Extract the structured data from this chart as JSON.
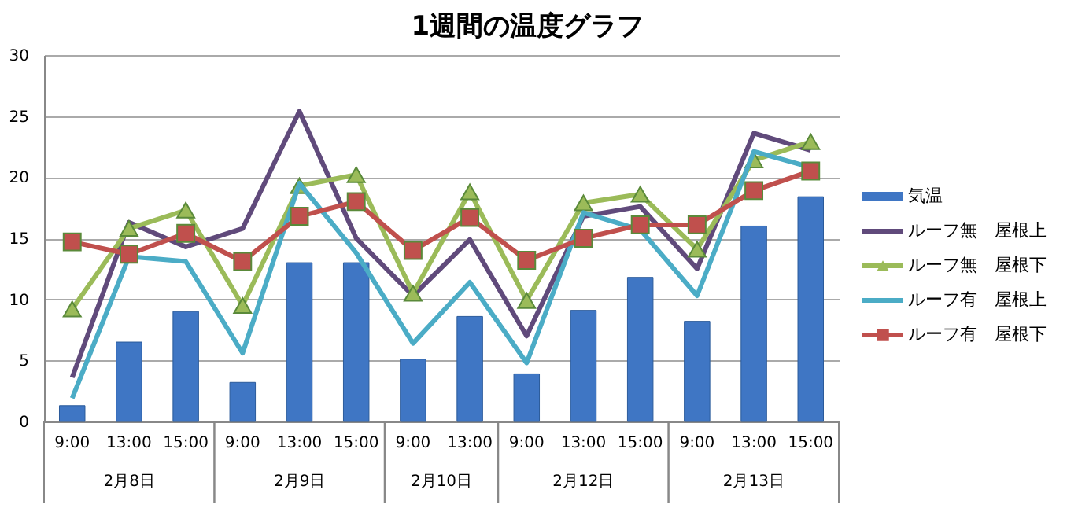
{
  "chart_data": {
    "type": "bar",
    "title": "1週間の温度グラフ",
    "categories": [
      "9:00",
      "13:00",
      "15:00",
      "9:00",
      "13:00",
      "15:00",
      "9:00",
      "13:00",
      "9:00",
      "13:00",
      "15:00",
      "9:00",
      "13:00",
      "15:00"
    ],
    "series": [
      {
        "name": "気温",
        "color": "#3f76c4",
        "values": [
          1.3,
          6.5,
          9.0,
          3.2,
          13.0,
          13.0,
          5.1,
          8.6,
          3.9,
          9.1,
          11.8,
          8.2,
          16.0,
          18.4
        ]
      },
      {
        "name": "ルーフ無　屋根上",
        "type": "line",
        "color": "#604a7b",
        "marker": "none",
        "values": [
          3.6,
          16.3,
          14.3,
          15.8,
          25.4,
          15.0,
          10.3,
          14.9,
          7.0,
          16.8,
          17.6,
          12.5,
          23.6,
          22.2
        ]
      },
      {
        "name": "ルーフ無　屋根下",
        "type": "line",
        "color": "#9bbb59",
        "marker": "triangle",
        "values": [
          9.2,
          15.8,
          17.3,
          9.5,
          19.3,
          20.2,
          10.5,
          18.8,
          9.9,
          17.9,
          18.6,
          14.1,
          21.4,
          22.9
        ]
      },
      {
        "name": "ルーフ有　屋根上",
        "type": "line",
        "color": "#4bacc6",
        "marker": "none",
        "values": [
          1.9,
          13.5,
          13.1,
          5.6,
          19.5,
          13.8,
          6.4,
          11.4,
          4.8,
          17.1,
          15.7,
          10.3,
          22.1,
          20.8
        ]
      },
      {
        "name": "ルーフ有　屋根下",
        "type": "line",
        "color": "#c0504d",
        "marker": "square",
        "values": [
          14.7,
          13.7,
          15.4,
          13.1,
          16.8,
          18.0,
          14.0,
          16.7,
          13.2,
          15.0,
          16.1,
          16.1,
          18.9,
          20.5
        ]
      }
    ],
    "annotations": [
      "2月8日",
      "2月9日",
      "2月10日",
      "2月12日",
      "2月13日"
    ],
    "ylim": [
      0,
      30
    ],
    "yticks": [
      0,
      5,
      10,
      15,
      20,
      25,
      30
    ],
    "grid": "y",
    "legend": "right"
  }
}
